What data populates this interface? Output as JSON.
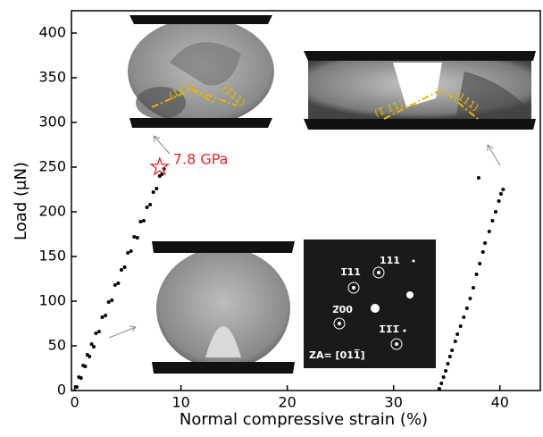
{
  "chart_data": {
    "type": "scatter",
    "xlabel": "Normal compressive strain  (%)",
    "ylabel": "Load (μN)",
    "xlim": [
      -0.3,
      43.8
    ],
    "ylim": [
      0,
      425
    ],
    "xticks": [
      0,
      10,
      20,
      30,
      40
    ],
    "yticks": [
      0,
      50,
      100,
      150,
      200,
      250,
      300,
      350,
      400
    ],
    "series": [
      {
        "color": "#000000",
        "x": [
          0.2,
          0.4,
          0.6,
          0.8,
          1.0,
          1.2,
          1.4,
          1.6,
          1.8,
          2.0,
          2.3,
          2.6,
          2.9,
          3.2,
          3.5,
          3.8,
          4.1,
          4.4,
          4.7,
          5.0,
          5.3,
          5.6,
          5.9,
          6.2,
          6.5,
          6.8,
          7.1,
          7.4,
          7.7,
          8.0,
          8.2,
          8.4
        ],
        "values": [
          4,
          15,
          14,
          28,
          27,
          40,
          38,
          52,
          49,
          64,
          66,
          82,
          84,
          99,
          101,
          118,
          120,
          135,
          138,
          154,
          156,
          172,
          171,
          189,
          190,
          205,
          208,
          222,
          226,
          240,
          242,
          248
        ]
      },
      {
        "color": "#000000",
        "x": [
          34.3,
          34.5,
          34.7,
          34.9,
          35.1,
          35.3,
          35.5,
          35.8,
          36.0,
          36.3,
          36.6,
          36.9,
          37.2,
          37.5,
          37.8,
          38.1,
          38.4,
          38.6,
          39.0,
          39.3,
          39.6,
          39.9,
          40.1,
          40.3,
          38.0
        ],
        "values": [
          2,
          8,
          15,
          22,
          30,
          38,
          45,
          55,
          63,
          72,
          82,
          92,
          103,
          115,
          130,
          142,
          155,
          165,
          178,
          190,
          200,
          212,
          220,
          225,
          238
        ]
      }
    ],
    "annotations": [
      {
        "text": "7.8 GPa",
        "x": 8,
        "y": 250,
        "color": "#e8202a"
      }
    ],
    "inset_labels": {
      "top_left": [
        "(111)",
        "(111)"
      ],
      "top_right": [
        "(1̅ 11)",
        "(111)"
      ],
      "diffraction": [
        "111",
        "1̅11",
        "2̅00",
        "1̅1̅1̅",
        "ZA= [011̅]"
      ]
    }
  }
}
